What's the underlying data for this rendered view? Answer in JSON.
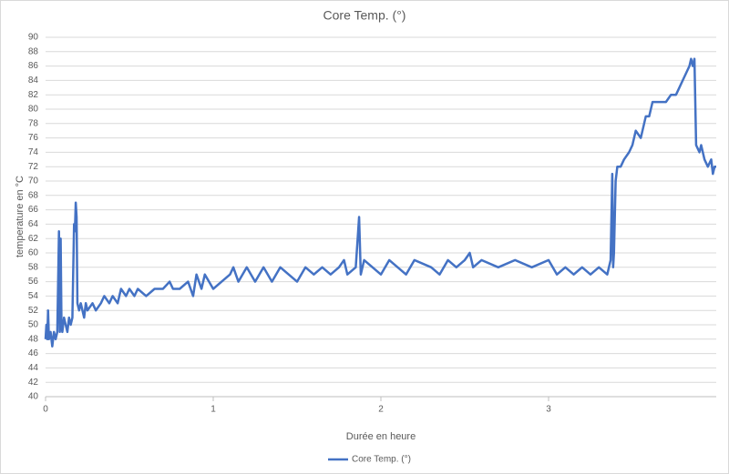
{
  "chart_data": {
    "type": "line",
    "title": "Core Temp. (°)",
    "x_label": "Durée en heure",
    "y_label": "temperature en °C",
    "x": [
      0,
      0.005,
      0.01,
      0.015,
      0.02,
      0.03,
      0.04,
      0.05,
      0.06,
      0.07,
      0.08,
      0.085,
      0.09,
      0.095,
      0.1,
      0.11,
      0.12,
      0.13,
      0.14,
      0.15,
      0.16,
      0.17,
      0.175,
      0.18,
      0.185,
      0.19,
      0.2,
      0.21,
      0.22,
      0.23,
      0.24,
      0.25,
      0.28,
      0.3,
      0.33,
      0.35,
      0.38,
      0.4,
      0.43,
      0.45,
      0.48,
      0.5,
      0.53,
      0.55,
      0.6,
      0.65,
      0.7,
      0.74,
      0.76,
      0.8,
      0.85,
      0.88,
      0.9,
      0.93,
      0.95,
      1.0,
      1.05,
      1.1,
      1.12,
      1.15,
      1.2,
      1.25,
      1.3,
      1.35,
      1.4,
      1.45,
      1.5,
      1.55,
      1.6,
      1.65,
      1.7,
      1.75,
      1.78,
      1.8,
      1.85,
      1.87,
      1.88,
      1.9,
      1.95,
      2.0,
      2.05,
      2.1,
      2.15,
      2.2,
      2.3,
      2.35,
      2.4,
      2.45,
      2.5,
      2.53,
      2.55,
      2.6,
      2.7,
      2.8,
      2.9,
      3.0,
      3.05,
      3.1,
      3.15,
      3.2,
      3.25,
      3.3,
      3.35,
      3.37,
      3.38,
      3.385,
      3.39,
      3.4,
      3.41,
      3.43,
      3.45,
      3.48,
      3.5,
      3.52,
      3.55,
      3.58,
      3.6,
      3.62,
      3.7,
      3.73,
      3.76,
      3.78,
      3.8,
      3.82,
      3.84,
      3.85,
      3.86,
      3.87,
      3.88,
      3.9,
      3.91,
      3.93,
      3.95,
      3.97,
      3.98,
      3.99,
      4.0
    ],
    "series": [
      {
        "name": "Core Temp. (°)",
        "color": "#4472c4",
        "values": [
          48,
          50,
          48,
          52,
          48,
          49,
          47,
          49,
          48,
          49,
          63,
          49,
          62,
          50,
          49,
          51,
          50,
          49,
          51,
          50,
          51,
          64,
          63,
          67,
          65,
          53,
          52,
          53,
          52,
          51,
          53,
          52,
          53,
          52,
          53,
          54,
          53,
          54,
          53,
          55,
          54,
          55,
          54,
          55,
          54,
          55,
          55,
          56,
          55,
          55,
          56,
          54,
          57,
          55,
          57,
          55,
          56,
          57,
          58,
          56,
          58,
          56,
          58,
          56,
          58,
          57,
          56,
          58,
          57,
          58,
          57,
          58,
          59,
          57,
          58,
          65,
          57,
          59,
          58,
          57,
          59,
          58,
          57,
          59,
          58,
          57,
          59,
          58,
          59,
          60,
          58,
          59,
          58,
          59,
          58,
          59,
          57,
          58,
          57,
          58,
          57,
          58,
          57,
          59,
          71,
          58,
          60,
          70,
          72,
          72,
          73,
          74,
          75,
          77,
          76,
          79,
          79,
          81,
          81,
          82,
          82,
          83,
          84,
          85,
          86,
          87,
          86,
          87,
          75,
          74,
          75,
          73,
          72,
          73,
          71,
          72,
          72
        ]
      }
    ],
    "xlim": [
      0,
      4
    ],
    "xticks": [
      0,
      1,
      2,
      3
    ],
    "ylim": [
      40,
      90
    ],
    "yticks": [
      40,
      42,
      44,
      46,
      48,
      50,
      52,
      54,
      56,
      58,
      60,
      62,
      64,
      66,
      68,
      70,
      72,
      74,
      76,
      78,
      80,
      82,
      84,
      86,
      88,
      90
    ],
    "grid": true,
    "legend": "bottom"
  }
}
